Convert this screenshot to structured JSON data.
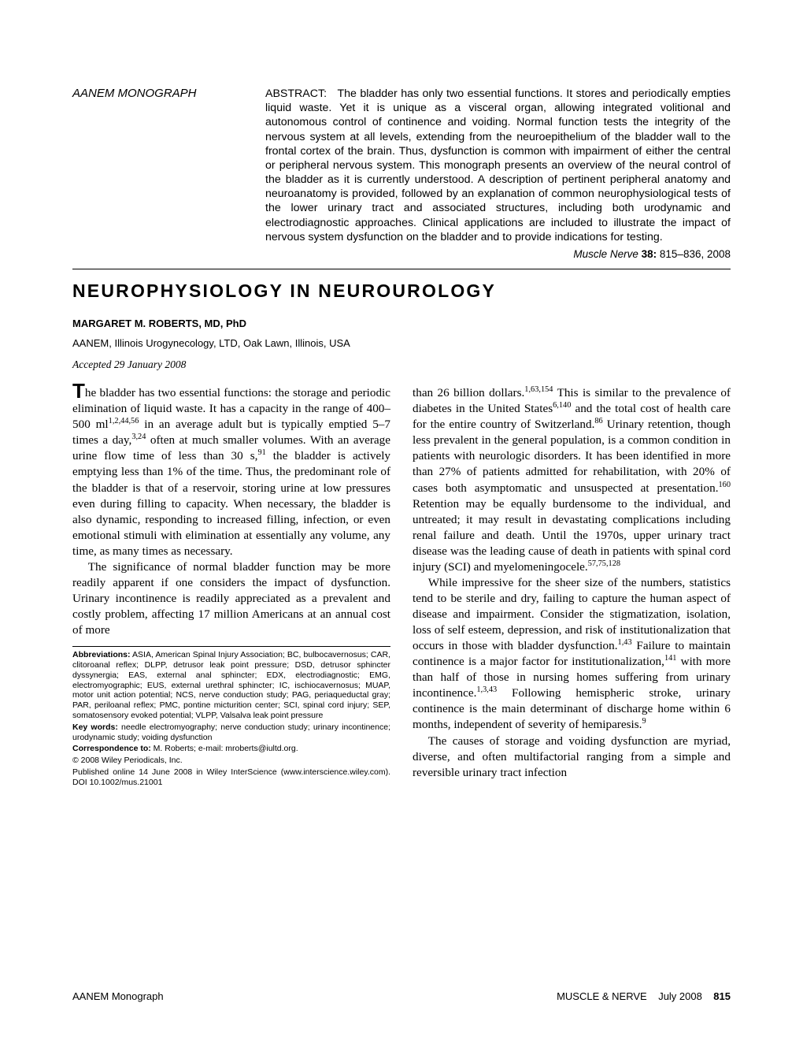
{
  "header": {
    "monograph_label": "AANEM MONOGRAPH",
    "abstract_label": "ABSTRACT:",
    "abstract_text": "The bladder has only two essential functions. It stores and periodically empties liquid waste. Yet it is unique as a visceral organ, allowing integrated volitional and autonomous control of continence and voiding. Normal function tests the integrity of the nervous system at all levels, extending from the neuroepithelium of the bladder wall to the frontal cortex of the brain. Thus, dysfunction is common with impairment of either the central or peripheral nervous system. This monograph presents an overview of the neural control of the bladder as it is currently understood. A description of pertinent peripheral anatomy and neuroanatomy is provided, followed by an explanation of common neurophysiological tests of the lower urinary tract and associated structures, including both urodynamic and electrodiagnostic approaches. Clinical applications are included to illustrate the impact of nervous system dysfunction on the bladder and to provide indications for testing.",
    "journal_name": "Muscle Nerve",
    "journal_vol": "38:",
    "journal_pages": "815–836, 2008"
  },
  "article": {
    "title": "NEUROPHYSIOLOGY IN NEUROUROLOGY",
    "author": "MARGARET M. ROBERTS, MD, PhD",
    "affiliation": "AANEM, Illinois Urogynecology, LTD, Oak Lawn, Illinois, USA",
    "accepted": "Accepted 29 January 2008"
  },
  "body": {
    "p1_dropcap": "T",
    "p1": "he bladder has two essential functions: the storage and periodic elimination of liquid waste. It has a capacity in the range of 400–500 ml",
    "p1_sup1": "1,2,44,56",
    "p1b": " in an average adult but is typically emptied 5–7 times a day,",
    "p1_sup2": "3,24",
    "p1c": " often at much smaller volumes. With an average urine flow time of less than 30 s,",
    "p1_sup3": "91",
    "p1d": " the bladder is actively emptying less than 1% of the time. Thus, the predominant role of the bladder is that of a reservoir, storing urine at low pressures even during filling to capacity. When necessary, the bladder is also dynamic, responding to increased filling, infection, or even emotional stimuli with elimination at essentially any volume, any time, as many times as necessary.",
    "p2": "The significance of normal bladder function may be more readily apparent if one considers the impact of dysfunction. Urinary incontinence is readily appreciated as a prevalent and costly problem, affecting 17 million Americans at an annual cost of more",
    "p3a": "than 26 billion dollars.",
    "p3_sup1": "1,63,154",
    "p3b": " This is similar to the prevalence of diabetes in the United States",
    "p3_sup2": "6,140",
    "p3c": " and the total cost of health care for the entire country of Switzerland.",
    "p3_sup3": "86",
    "p3d": " Urinary retention, though less prevalent in the general population, is a common condition in patients with neurologic disorders. It has been identified in more than 27% of patients admitted for rehabilitation, with 20% of cases both asymptomatic and unsuspected at presentation.",
    "p3_sup4": "160",
    "p3e": " Retention may be equally burdensome to the individual, and untreated; it may result in devastating complications including renal failure and death. Until the 1970s, upper urinary tract disease was the leading cause of death in patients with spinal cord injury (SCI) and myelomeningocele.",
    "p3_sup5": "57,75,128",
    "p4a": "While impressive for the sheer size of the numbers, statistics tend to be sterile and dry, failing to capture the human aspect of disease and impairment. Consider the stigmatization, isolation, loss of self esteem, depression, and risk of institutionalization that occurs in those with bladder dysfunction.",
    "p4_sup1": "1,43",
    "p4b": " Failure to maintain continence is a major factor for institutionalization,",
    "p4_sup2": "141",
    "p4c": " with more than half of those in nursing homes suffering from urinary incontinence.",
    "p4_sup3": "1,3,43",
    "p4d": " Following hemispheric stroke, urinary continence is the main determinant of discharge home within 6 months, independent of severity of hemiparesis.",
    "p4_sup4": "9",
    "p5": "The causes of storage and voiding dysfunction are myriad, diverse, and often multifactorial ranging from a simple and reversible urinary tract infection"
  },
  "footnotes": {
    "abbr_label": "Abbreviations:",
    "abbr_text": " ASIA, American Spinal Injury Association; BC, bulbocavernosus; CAR, clitoroanal reflex; DLPP, detrusor leak point pressure; DSD, detrusor sphincter dyssynergia; EAS, external anal sphincter; EDX, electrodiagnostic; EMG, electromyographic; EUS, external urethral sphincter; IC, ischiocavernosus; MUAP, motor unit action potential; NCS, nerve conduction study; PAG, periaqueductal gray; PAR, periloanal reflex; PMC, pontine micturition center; SCI, spinal cord injury; SEP, somatosensory evoked potential; VLPP, Valsalva leak point pressure",
    "kw_label": "Key words:",
    "kw_text": " needle electromyography; nerve conduction study; urinary incontinence; urodynamic study; voiding dysfunction",
    "corr_label": "Correspondence to:",
    "corr_text": " M. Roberts; e-mail: mroberts@iultd.org.",
    "copyright": "© 2008 Wiley Periodicals, Inc.",
    "pub_online": "Published online 14 June 2008 in Wiley InterScience (www.interscience.wiley.com). DOI 10.1002/mus.21001"
  },
  "footer": {
    "left": "AANEM Monograph",
    "right_journal": "MUSCLE & NERVE",
    "right_date": "July 2008",
    "page": "815"
  }
}
